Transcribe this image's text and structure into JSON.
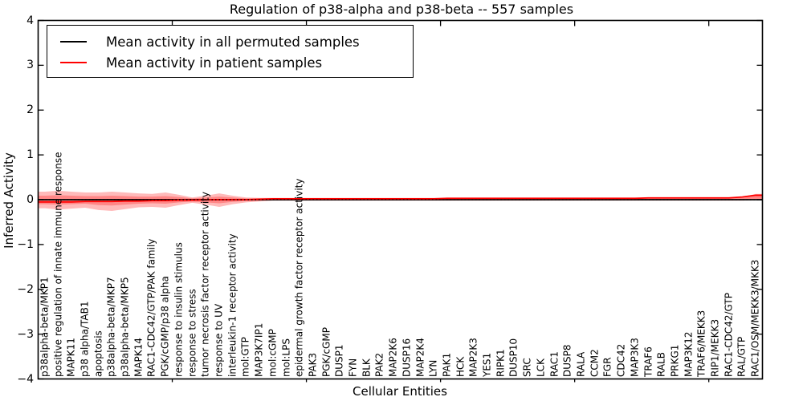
{
  "figure": {
    "title": "Regulation of p38-alpha and p38-beta -- 557 samples",
    "xlabel": "Cellular Entities",
    "ylabel": "Inferred Activity"
  },
  "chart_data": {
    "type": "line",
    "title": "Regulation of p38-alpha and p38-beta -- 557 samples",
    "xlabel": "Cellular Entities",
    "ylabel": "Inferred Activity",
    "ylim": [
      -4,
      4
    ],
    "xlim": [
      0,
      54
    ],
    "grid": false,
    "legend_position": "upper left",
    "zero_line_style": "dotted",
    "yticks": [
      4,
      3,
      2,
      1,
      0,
      -1,
      -2,
      -3,
      -4
    ],
    "ytick_labels": [
      "4",
      "3",
      "2",
      "1",
      "0",
      "−1",
      "−2",
      "−3",
      "−4"
    ],
    "xticks": [
      10,
      20,
      30,
      40,
      50
    ],
    "categories": [
      "p38alpha-beta/MKP1",
      "positive regulation of innate immune response",
      "MAPK11",
      "p38 alpha/TAB1",
      "apoptosis",
      "p38alpha-beta/MKP7",
      "p38alpha-beta/MKP5",
      "MAPK14",
      "RAC1-CDC42/GTP/PAK family",
      "PGK/cGMP/p38 alpha",
      "response to insulin stimulus",
      "response to stress",
      "tumor necrosis factor receptor activity",
      "response to UV",
      "interleukin-1 receptor activity",
      "mol:GTP",
      "MAP3K7IP1",
      "mol:cGMP",
      "mol:LPS",
      "epidermal growth factor receptor activity",
      "PAK3",
      "PGK/cGMP",
      "DUSP1",
      "FYN",
      "BLK",
      "PAK2",
      "MAP2K6",
      "DUSP16",
      "MAP2K4",
      "LYN",
      "PAK1",
      "HCK",
      "MAP2K3",
      "YES1",
      "RIPK1",
      "DUSP10",
      "SRC",
      "LCK",
      "RAC1",
      "DUSP8",
      "RALA",
      "CCM2",
      "FGR",
      "CDC42",
      "MAP3K3",
      "TRAF6",
      "RALB",
      "PRKG1",
      "MAP3K12",
      "TRAF6/MEKK3",
      "RIP1/MEKK3",
      "RAC1-CDC42/GTP",
      "RAL/GTP",
      "RAC1/OSM/MEKK3/MKK3"
    ],
    "series": [
      {
        "name": "Mean activity in all permuted samples",
        "color": "#000000",
        "style": "solid",
        "values": [
          0,
          0,
          0,
          0,
          0,
          0,
          0,
          0,
          0,
          0,
          0,
          0,
          0,
          0,
          0,
          0,
          0,
          0,
          0,
          0,
          0,
          0,
          0,
          0,
          0,
          0,
          0,
          0,
          0,
          0,
          0,
          0,
          0,
          0,
          0,
          0,
          0,
          0,
          0,
          0,
          0,
          0,
          0,
          0,
          0,
          0,
          0,
          0,
          0,
          0,
          0,
          0,
          0,
          0
        ]
      },
      {
        "name": "Mean activity in patient samples",
        "color": "#ff0000",
        "style": "solid",
        "values": [
          -0.05,
          -0.05,
          -0.05,
          -0.04,
          -0.04,
          -0.04,
          -0.03,
          -0.03,
          -0.02,
          -0.02,
          -0.01,
          -0.01,
          0,
          0,
          0,
          0,
          0.01,
          0.02,
          0.02,
          0.02,
          0.02,
          0.02,
          0.02,
          0.02,
          0.02,
          0.02,
          0.02,
          0.02,
          0.02,
          0.02,
          0.03,
          0.03,
          0.03,
          0.03,
          0.03,
          0.03,
          0.03,
          0.03,
          0.03,
          0.03,
          0.03,
          0.03,
          0.03,
          0.03,
          0.03,
          0.04,
          0.04,
          0.04,
          0.04,
          0.04,
          0.04,
          0.04,
          0.06,
          0.1
        ]
      }
    ],
    "band": {
      "name": "patient-mean-spread",
      "color": "#ff0000",
      "alpha": 0.27,
      "outer_upper": [
        0.18,
        0.2,
        0.18,
        0.16,
        0.16,
        0.18,
        0.16,
        0.14,
        0.13,
        0.16,
        0.11,
        0.05,
        0.09,
        0.14,
        0.09,
        0.05,
        0.04,
        0.04,
        0.04,
        0.04,
        0.04,
        0.04,
        0.04,
        0.04,
        0.04,
        0.04,
        0.04,
        0.04,
        0.04,
        0.04,
        0.04,
        0.04,
        0.04,
        0.04,
        0.04,
        0.04,
        0.04,
        0.04,
        0.04,
        0.04,
        0.04,
        0.04,
        0.04,
        0.04,
        0.04,
        0.04,
        0.04,
        0.04,
        0.04,
        0.04,
        0.04,
        0.05,
        0.06,
        0.13
      ],
      "outer_lower": [
        -0.19,
        -0.22,
        -0.2,
        -0.18,
        -0.23,
        -0.25,
        -0.21,
        -0.17,
        -0.16,
        -0.18,
        -0.12,
        -0.07,
        -0.11,
        -0.16,
        -0.1,
        -0.06,
        -0.04,
        -0.02,
        -0.02,
        -0.02,
        -0.02,
        -0.02,
        -0.02,
        -0.02,
        -0.02,
        -0.02,
        -0.02,
        -0.02,
        -0.02,
        -0.02,
        -0.02,
        -0.02,
        -0.02,
        -0.02,
        -0.02,
        -0.02,
        -0.02,
        -0.02,
        -0.02,
        -0.02,
        -0.02,
        -0.02,
        -0.02,
        -0.02,
        -0.02,
        -0.02,
        -0.02,
        -0.02,
        -0.02,
        -0.02,
        -0.02,
        -0.02,
        -0.02,
        -0.01
      ],
      "inner_upper": [
        0.09,
        0.1,
        0.09,
        0.08,
        0.08,
        0.09,
        0.08,
        0.07,
        0.07,
        0.08,
        0.06,
        0.03,
        0.05,
        0.07,
        0.05,
        0.03,
        0.03,
        0.03,
        0.03,
        0.03,
        0.03,
        0.03,
        0.03,
        0.03,
        0.03,
        0.03,
        0.03,
        0.03,
        0.03,
        0.03,
        0.03,
        0.03,
        0.03,
        0.03,
        0.03,
        0.03,
        0.03,
        0.03,
        0.03,
        0.03,
        0.03,
        0.03,
        0.03,
        0.03,
        0.03,
        0.03,
        0.03,
        0.03,
        0.03,
        0.03,
        0.03,
        0.03,
        0.04,
        0.09
      ],
      "inner_lower": [
        -0.1,
        -0.11,
        -0.1,
        -0.09,
        -0.12,
        -0.13,
        -0.11,
        -0.09,
        -0.08,
        -0.09,
        -0.06,
        -0.04,
        -0.06,
        -0.08,
        -0.05,
        -0.03,
        -0.02,
        -0.01,
        -0.01,
        -0.01,
        -0.01,
        -0.01,
        -0.01,
        -0.01,
        -0.01,
        -0.01,
        -0.01,
        -0.01,
        -0.01,
        -0.01,
        -0.01,
        -0.01,
        -0.01,
        -0.01,
        -0.01,
        -0.01,
        -0.01,
        -0.01,
        -0.01,
        -0.01,
        -0.01,
        -0.01,
        -0.01,
        -0.01,
        -0.01,
        -0.01,
        -0.01,
        -0.01,
        -0.01,
        -0.01,
        -0.01,
        -0.01,
        -0.01,
        0
      ]
    }
  }
}
